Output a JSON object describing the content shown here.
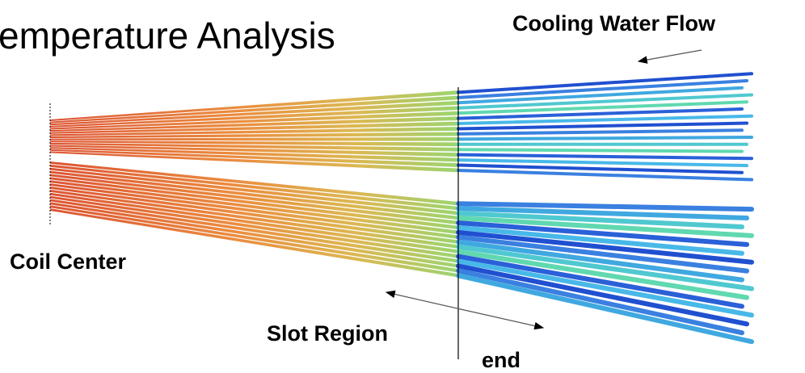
{
  "title": "emperature Analysis",
  "labels": {
    "flow": "Cooling Water Flow",
    "coil_center": "Coil Center",
    "slot_region": "Slot Region",
    "end": "end"
  }
}
